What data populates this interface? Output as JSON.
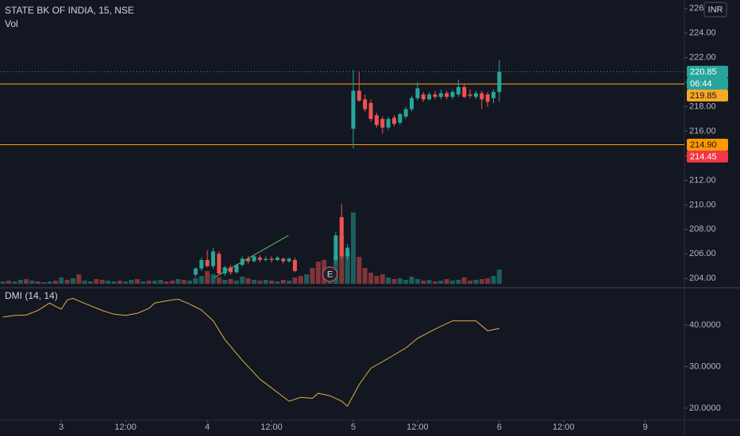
{
  "chart_data": [
    {
      "type": "candlestick",
      "title": "STATE BK OF INDIA, 15, NSE",
      "currency": "INR",
      "xlim": [
        -10.5,
        106.7
      ],
      "ylim": [
        203.3,
        226.7
      ],
      "yticks": [
        {
          "value": 226,
          "label": "226.00"
        },
        {
          "value": 224,
          "label": "224.00"
        },
        {
          "value": 222,
          "label": "222.00"
        },
        {
          "value": 220,
          "label": "220.00"
        },
        {
          "value": 218,
          "label": "218.00"
        },
        {
          "value": 216,
          "label": "216.00"
        },
        {
          "value": 214,
          "label": "214.00"
        },
        {
          "value": 212,
          "label": "212.00"
        },
        {
          "value": 210,
          "label": "210.00"
        },
        {
          "value": 208,
          "label": "208.00"
        },
        {
          "value": 206,
          "label": "206.00"
        },
        {
          "value": 204,
          "label": "204.00"
        }
      ],
      "up_color": "#26a69a",
      "down_color": "#ef5350",
      "candles": {
        "x": [
          23,
          24,
          25,
          26,
          27,
          28,
          29,
          30,
          31,
          32,
          33,
          34,
          35,
          36,
          37,
          38,
          39,
          40,
          47,
          48,
          49,
          50,
          51,
          52,
          53,
          54,
          55,
          56,
          57,
          58,
          59,
          60,
          61,
          62,
          63,
          64,
          65,
          66,
          67,
          68,
          69,
          70,
          71,
          72,
          73,
          74,
          75
        ],
        "open": [
          204.3,
          204.8,
          205.5,
          205.0,
          206.0,
          204.4,
          204.9,
          204.5,
          205.1,
          205.6,
          205.4,
          205.7,
          205.5,
          205.6,
          205.5,
          205.6,
          205.4,
          205.5,
          205.5,
          209.0,
          205.8,
          216.2,
          219.3,
          218.6,
          218.3,
          217.3,
          217.0,
          216.3,
          217.1,
          216.7,
          217.2,
          217.8,
          218.7,
          219.0,
          218.6,
          219.0,
          218.8,
          219.1,
          218.8,
          219.0,
          219.6,
          219.0,
          218.8,
          219.1,
          219.0,
          218.7,
          219.2
        ],
        "high": [
          204.9,
          205.7,
          206.3,
          206.5,
          206.2,
          205.0,
          205.1,
          205.2,
          205.8,
          205.8,
          205.9,
          205.9,
          205.8,
          205.8,
          205.8,
          205.7,
          205.7,
          205.7,
          207.8,
          210.1,
          206.8,
          221.0,
          220.8,
          219.0,
          218.6,
          217.5,
          217.2,
          217.2,
          217.3,
          217.5,
          218.0,
          218.9,
          220.0,
          219.2,
          219.2,
          219.3,
          219.4,
          219.3,
          219.4,
          220.2,
          219.8,
          219.4,
          219.3,
          219.3,
          219.2,
          219.4,
          221.8
        ],
        "low": [
          204.1,
          204.6,
          204.9,
          204.8,
          204.3,
          204.2,
          204.3,
          204.4,
          205.0,
          205.2,
          205.3,
          205.3,
          205.4,
          205.3,
          205.4,
          205.2,
          205.3,
          204.5,
          205.2,
          205.6,
          205.5,
          214.6,
          218.4,
          217.6,
          216.8,
          216.3,
          215.8,
          216.1,
          216.4,
          216.5,
          217.0,
          217.6,
          218.5,
          218.4,
          218.5,
          218.6,
          218.6,
          218.6,
          218.6,
          218.8,
          218.7,
          218.7,
          218.6,
          217.8,
          218.0,
          218.3,
          218.4
        ],
        "close": [
          204.8,
          205.5,
          205.0,
          206.2,
          204.4,
          204.9,
          204.5,
          205.1,
          205.6,
          205.4,
          205.8,
          205.5,
          205.6,
          205.5,
          205.7,
          205.4,
          205.6,
          204.6,
          207.5,
          205.8,
          206.5,
          219.3,
          218.5,
          217.8,
          217.0,
          216.5,
          216.3,
          217.0,
          216.6,
          217.4,
          217.8,
          218.7,
          219.5,
          218.6,
          219.0,
          218.8,
          219.1,
          218.8,
          219.2,
          219.6,
          218.8,
          218.9,
          219.1,
          218.6,
          218.4,
          219.2,
          220.85
        ]
      },
      "volume": {
        "name": "Vol",
        "ylim": [
          0,
          100
        ],
        "x": [
          -10,
          -9,
          -8,
          -7,
          -6,
          -5,
          -4,
          -3,
          -2,
          -1,
          0,
          1,
          2,
          3,
          4,
          5,
          6,
          7,
          8,
          9,
          10,
          11,
          12,
          13,
          14,
          15,
          16,
          17,
          18,
          19,
          20,
          21,
          22,
          23,
          24,
          25,
          26,
          27,
          28,
          29,
          30,
          31,
          32,
          33,
          34,
          35,
          36,
          37,
          38,
          39,
          40,
          41,
          42,
          43,
          44,
          45,
          46,
          47,
          48,
          49,
          50,
          51,
          52,
          53,
          54,
          55,
          56,
          57,
          58,
          59,
          60,
          61,
          62,
          63,
          64,
          65,
          66,
          67,
          68,
          69,
          70,
          71,
          72,
          73,
          74,
          75
        ],
        "values": [
          3,
          4,
          3,
          5,
          6,
          4,
          3,
          2,
          3,
          4,
          8,
          5,
          7,
          12,
          4,
          3,
          6,
          5,
          4,
          3,
          4,
          3,
          5,
          6,
          3,
          4,
          4,
          5,
          3,
          4,
          6,
          5,
          4,
          7,
          10,
          16,
          12,
          8,
          5,
          6,
          4,
          9,
          7,
          5,
          4,
          5,
          4,
          3,
          5,
          4,
          8,
          10,
          12,
          20,
          28,
          30,
          22,
          35,
          60,
          40,
          90,
          34,
          20,
          14,
          10,
          12,
          8,
          6,
          7,
          5,
          9,
          6,
          4,
          5,
          3,
          4,
          6,
          4,
          5,
          8,
          4,
          5,
          6,
          7,
          10,
          18
        ],
        "up": [
          1,
          0,
          1,
          1,
          0,
          1,
          0,
          1,
          1,
          0,
          1,
          0,
          1,
          0,
          1,
          1,
          0,
          0,
          1,
          1,
          0,
          1,
          1,
          0,
          1,
          0,
          1,
          1,
          0,
          0,
          1,
          0,
          1,
          1,
          1,
          0,
          1,
          0,
          1,
          0,
          1,
          1,
          0,
          1,
          0,
          1,
          0,
          1,
          0,
          1,
          0,
          0,
          1,
          0,
          0,
          0,
          1,
          1,
          0,
          1,
          1,
          0,
          0,
          0,
          0,
          0,
          1,
          0,
          1,
          1,
          1,
          1,
          0,
          1,
          0,
          1,
          0,
          1,
          1,
          0,
          0,
          1,
          0,
          0,
          1,
          1
        ]
      },
      "last_price": {
        "value": 220.85,
        "label": "220.85",
        "countdown": "06:44",
        "color": "#26a69a"
      },
      "hlines": [
        {
          "value": 219.85,
          "label": "219.85",
          "color": "#f9a825"
        },
        {
          "value": 214.9,
          "label": "214.90",
          "color": "#ff9800"
        }
      ],
      "low_mark": {
        "value": 214.45,
        "label": "214.45",
        "color": "#f23645"
      },
      "drawings": [
        {
          "x": [
            26.2,
            38.9
          ],
          "y": [
            204.06,
            207.5
          ],
          "color": "#4caf50"
        }
      ],
      "earnings": {
        "x": 46,
        "label": "E"
      }
    },
    {
      "type": "line",
      "title": "DMI (14, 14)",
      "xlim": [
        -10.5,
        106.7
      ],
      "ylim": [
        17.14,
        48.57
      ],
      "yticks": [
        {
          "value": 40,
          "label": "40.0000"
        },
        {
          "value": 30,
          "label": "30.0000"
        },
        {
          "value": 20,
          "label": "20.0000"
        }
      ],
      "xticks": [
        {
          "value": 0,
          "label": "3"
        },
        {
          "value": 11,
          "label": "12:00"
        },
        {
          "value": 25,
          "label": "4"
        },
        {
          "value": 36,
          "label": "12:00"
        },
        {
          "value": 50,
          "label": "5"
        },
        {
          "value": 61,
          "label": "12:00"
        },
        {
          "value": 75,
          "label": "6"
        },
        {
          "value": 86,
          "label": "12:00"
        },
        {
          "value": 100,
          "label": "9"
        }
      ],
      "color": "#e0b040",
      "x": [
        -10,
        -8,
        -6,
        -4,
        -2,
        -1,
        0,
        1,
        2,
        4,
        7,
        9,
        11,
        13,
        15,
        16,
        18,
        20,
        22,
        24,
        26,
        28,
        31,
        34,
        37,
        39,
        41,
        43,
        44,
        46,
        48,
        49,
        51,
        53,
        56,
        59,
        61,
        64,
        67,
        71,
        73,
        75
      ],
      "values": [
        41.9,
        42.3,
        42.4,
        43.5,
        45.3,
        44.5,
        43.8,
        46.0,
        46.4,
        45.2,
        43.5,
        42.6,
        42.3,
        42.8,
        44.0,
        45.3,
        45.8,
        46.2,
        45.0,
        43.6,
        41.0,
        36.5,
        31.5,
        27.0,
        23.8,
        21.7,
        22.6,
        22.4,
        23.6,
        23.0,
        21.7,
        20.5,
        25.7,
        29.6,
        32.0,
        34.5,
        36.8,
        39.0,
        41.0,
        41.0,
        38.6,
        39.2
      ]
    }
  ]
}
